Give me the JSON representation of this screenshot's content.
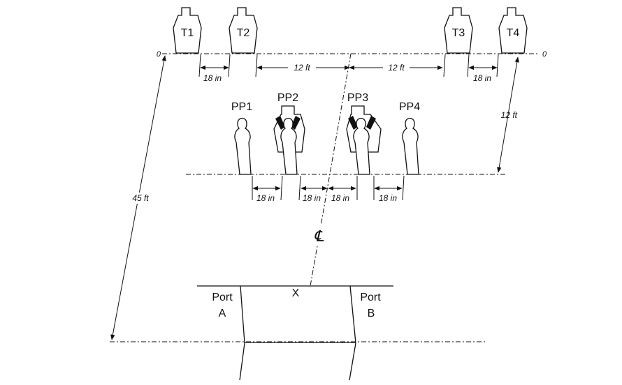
{
  "zero_left": "0",
  "zero_right": "0",
  "centerline_symbol": "℄",
  "mark_x": "X",
  "targets": [
    {
      "label": "T1"
    },
    {
      "label": "T2"
    },
    {
      "label": "T3"
    },
    {
      "label": "T4"
    }
  ],
  "plates": [
    {
      "label": "PP1"
    },
    {
      "label": "PP2"
    },
    {
      "label": "PP3"
    },
    {
      "label": "PP4"
    }
  ],
  "dimensions": {
    "t1_t2_gap": "18 in",
    "t2_center": "12 ft",
    "center_t3": "12 ft",
    "t3_t4_gap": "18 in",
    "downrange": "12 ft",
    "overall": "45 ft",
    "pp1_pp2_gap": "18 in",
    "pp2_center": "18 in",
    "center_pp3": "18 in",
    "pp3_pp4_gap": "18 in"
  },
  "ports": {
    "a_line1": "Port",
    "a_line2": "A",
    "b_line1": "Port",
    "b_line2": "B"
  }
}
